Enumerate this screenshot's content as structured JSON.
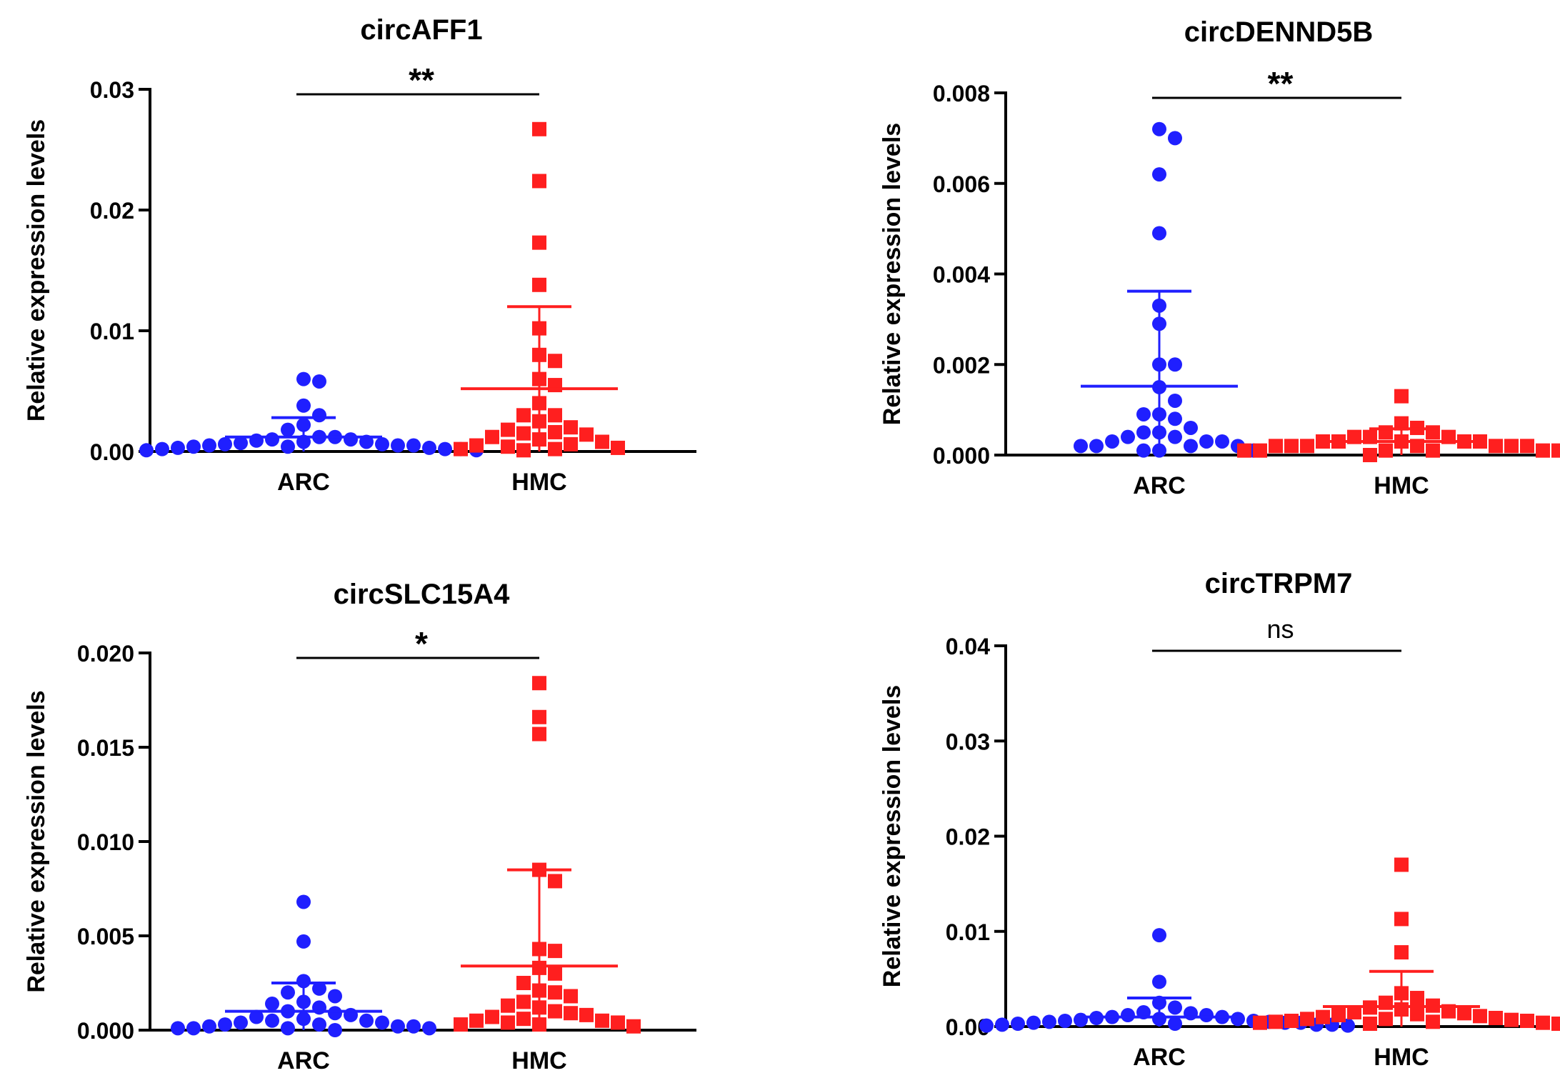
{
  "colors": {
    "arc": "#1f1fff",
    "hmc": "#ff1f1f",
    "axis": "#000000"
  },
  "chart_data": [
    {
      "type": "scatter",
      "title": "circAFF1",
      "ylabel": "Relative expression levels",
      "categories": [
        "ARC",
        "HMC"
      ],
      "ylim": [
        0,
        0.03
      ],
      "yticks": [
        0,
        0.01,
        0.02,
        0.03
      ],
      "ytick_labels": [
        "0.00",
        "0.01",
        "0.02",
        "0.03"
      ],
      "significance": "**",
      "series": [
        {
          "name": "ARC",
          "marker": "circle",
          "mean": 0.0012,
          "sd_upper": 0.0028,
          "sd_lower": 0.0,
          "values": [
            0.006,
            0.0058,
            0.0038,
            0.003,
            0.0022,
            0.0018,
            0.0012,
            0.0012,
            0.001,
            0.001,
            0.0009,
            0.0008,
            0.0008,
            0.0007,
            0.0006,
            0.0006,
            0.0005,
            0.0005,
            0.0005,
            0.0004,
            0.0004,
            0.0003,
            0.0003,
            0.0002,
            0.0002,
            0.0002,
            0.0001,
            0.0001
          ]
        },
        {
          "name": "HMC",
          "marker": "square",
          "mean": 0.0052,
          "sd_upper": 0.012,
          "sd_lower": 0.0,
          "values": [
            0.0267,
            0.0224,
            0.0173,
            0.0138,
            0.0102,
            0.008,
            0.0075,
            0.006,
            0.0055,
            0.004,
            0.003,
            0.003,
            0.0025,
            0.002,
            0.0018,
            0.0016,
            0.0015,
            0.0014,
            0.0012,
            0.001,
            0.0008,
            0.0006,
            0.0005,
            0.0004,
            0.0003,
            0.0002,
            0.0002,
            0.0001
          ]
        }
      ]
    },
    {
      "type": "scatter",
      "title": "circDENND5B",
      "ylabel": "Relative expression levels",
      "categories": [
        "ARC",
        "HMC"
      ],
      "ylim": [
        0,
        0.008
      ],
      "yticks": [
        0,
        0.002,
        0.004,
        0.006,
        0.008
      ],
      "ytick_labels": [
        "0.000",
        "0.002",
        "0.004",
        "0.006",
        "0.008"
      ],
      "significance": "**",
      "series": [
        {
          "name": "ARC",
          "marker": "circle",
          "mean": 0.00152,
          "sd_upper": 0.00362,
          "sd_lower": 0.0,
          "values": [
            0.0072,
            0.007,
            0.0062,
            0.0049,
            0.0033,
            0.0029,
            0.002,
            0.002,
            0.0015,
            0.0012,
            0.0009,
            0.0009,
            0.0008,
            0.0006,
            0.0005,
            0.0005,
            0.0004,
            0.0004,
            0.0003,
            0.0003,
            0.0003,
            0.0002,
            0.0002,
            0.0002,
            0.0002,
            0.0001,
            0.0001,
            0.0001
          ]
        },
        {
          "name": "HMC",
          "marker": "square",
          "mean": 0.0003,
          "sd_upper": 0.00058,
          "sd_lower": 0.0,
          "values": [
            0.0013,
            0.0007,
            0.0006,
            0.0005,
            0.0005,
            0.0004,
            0.0004,
            0.0004,
            0.0003,
            0.0003,
            0.0003,
            0.0003,
            0.0003,
            0.0002,
            0.0002,
            0.0002,
            0.0002,
            0.0002,
            0.0002,
            0.0002,
            0.0001,
            0.0001,
            0.0001,
            0.0001,
            0.0001,
            0.0001,
            0.0001,
            0.0
          ]
        }
      ]
    },
    {
      "type": "scatter",
      "title": "circSLC15A4",
      "ylabel": "Relative expression levels",
      "categories": [
        "ARC",
        "HMC"
      ],
      "ylim": [
        0,
        0.02
      ],
      "yticks": [
        0,
        0.005,
        0.01,
        0.015,
        0.02
      ],
      "ytick_labels": [
        "0.000",
        "0.005",
        "0.010",
        "0.015",
        "0.020"
      ],
      "significance": "*",
      "series": [
        {
          "name": "ARC",
          "marker": "circle",
          "mean": 0.001,
          "sd_upper": 0.0025,
          "sd_lower": 0.0,
          "values": [
            0.0068,
            0.0047,
            0.0026,
            0.0022,
            0.002,
            0.0018,
            0.0015,
            0.0014,
            0.0012,
            0.001,
            0.0009,
            0.0008,
            0.0007,
            0.0006,
            0.0005,
            0.0005,
            0.0004,
            0.0004,
            0.0003,
            0.0003,
            0.0002,
            0.0002,
            0.0002,
            0.0001,
            0.0001,
            0.0001,
            0.0001,
            0.0
          ]
        },
        {
          "name": "HMC",
          "marker": "square",
          "mean": 0.0034,
          "sd_upper": 0.0085,
          "sd_lower": 0.0,
          "values": [
            0.0184,
            0.0166,
            0.0157,
            0.0085,
            0.0079,
            0.0043,
            0.0042,
            0.0033,
            0.003,
            0.0025,
            0.0021,
            0.002,
            0.0018,
            0.0015,
            0.0013,
            0.0012,
            0.001,
            0.0009,
            0.0008,
            0.0007,
            0.0006,
            0.0005,
            0.0005,
            0.0004,
            0.0004,
            0.0003,
            0.0003,
            0.0002
          ]
        }
      ]
    },
    {
      "type": "scatter",
      "title": "circTRPM7",
      "ylabel": "Relative expression levels",
      "categories": [
        "ARC",
        "HMC"
      ],
      "ylim": [
        0,
        0.04
      ],
      "yticks": [
        0,
        0.01,
        0.02,
        0.03,
        0.04
      ],
      "ytick_labels": [
        "0.00",
        "0.01",
        "0.02",
        "0.03",
        "0.04"
      ],
      "significance": "ns",
      "series": [
        {
          "name": "ARC",
          "marker": "circle",
          "mean": 0.001,
          "sd_upper": 0.003,
          "sd_lower": 0.0,
          "values": [
            0.0096,
            0.0047,
            0.0025,
            0.002,
            0.0015,
            0.0014,
            0.0012,
            0.0012,
            0.001,
            0.001,
            0.0009,
            0.0008,
            0.0008,
            0.0007,
            0.0006,
            0.0006,
            0.0005,
            0.0005,
            0.0004,
            0.0004,
            0.0004,
            0.0003,
            0.0003,
            0.0002,
            0.0002,
            0.0002,
            0.0001,
            0.0001
          ]
        },
        {
          "name": "HMC",
          "marker": "square",
          "mean": 0.0021,
          "sd_upper": 0.0058,
          "sd_lower": 0.0,
          "values": [
            0.017,
            0.0113,
            0.0078,
            0.0035,
            0.003,
            0.0025,
            0.0022,
            0.002,
            0.0018,
            0.0016,
            0.0015,
            0.0014,
            0.0013,
            0.0012,
            0.0011,
            0.001,
            0.0009,
            0.0008,
            0.0008,
            0.0007,
            0.0006,
            0.0006,
            0.0005,
            0.0005,
            0.0004,
            0.0004,
            0.0003,
            0.0003
          ]
        }
      ]
    }
  ]
}
